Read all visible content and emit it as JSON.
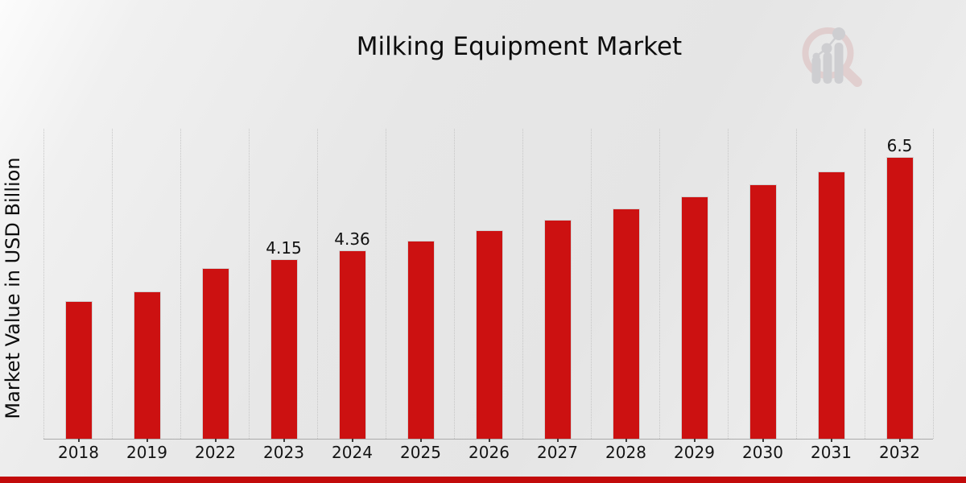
{
  "chart_data": {
    "type": "bar",
    "title": "Milking Equipment Market",
    "ylabel": "Market Value in USD Billion",
    "xlabel": "",
    "categories": [
      "2018",
      "2019",
      "2022",
      "2023",
      "2024",
      "2025",
      "2026",
      "2027",
      "2028",
      "2029",
      "2030",
      "2031",
      "2032"
    ],
    "values": [
      3.18,
      3.41,
      3.95,
      4.15,
      4.36,
      4.58,
      4.82,
      5.06,
      5.32,
      5.59,
      5.88,
      6.18,
      6.5
    ],
    "data_labels": {
      "2023": "4.15",
      "2024": "4.36",
      "2032": "6.5"
    },
    "ylim": [
      0,
      7.16
    ],
    "y_ticks": "none",
    "grid": "vertical dotted column separators",
    "legend": "none",
    "bar_color": "#cc1111"
  },
  "branding": {
    "logo_icon": "magnifier-growth-chart-icon"
  },
  "colors": {
    "bar": "#cc1111",
    "ribbon": "#c20a0a",
    "grid": "#c6c6c6",
    "axis": "#ababab",
    "logo_pink": "#ddc0c0",
    "logo_gray": "#bfbfc4"
  }
}
